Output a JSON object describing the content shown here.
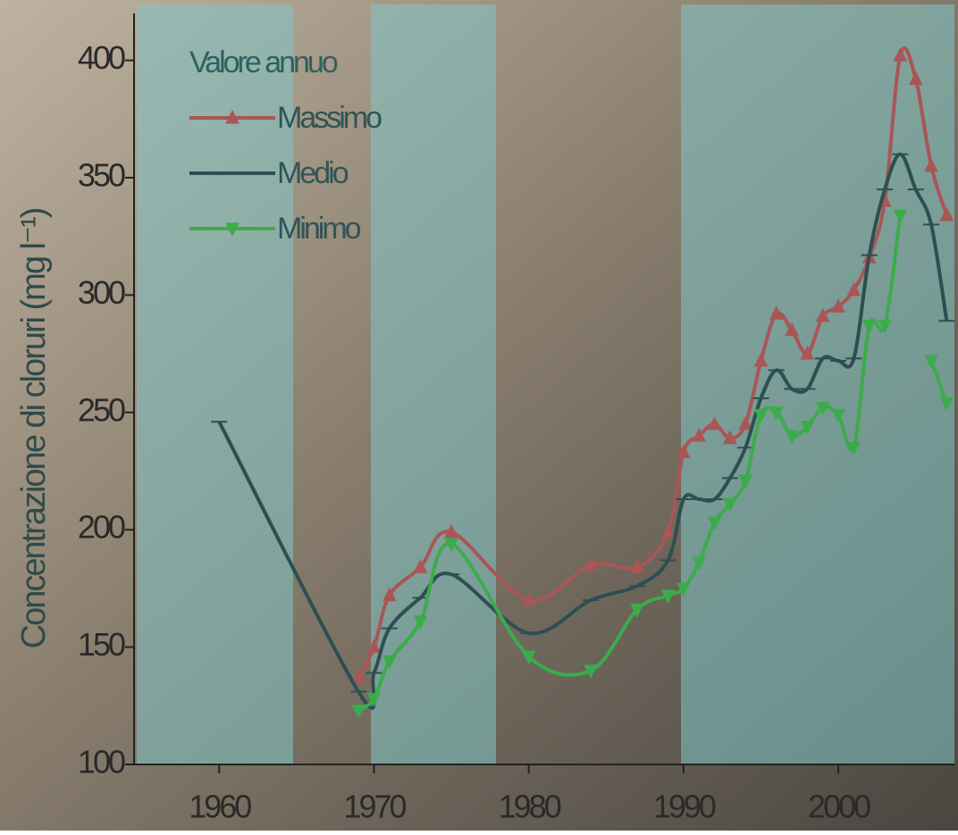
{
  "chart_data": {
    "type": "line",
    "y_label": "Concentrazione di cloruri (mg l⁻¹)",
    "legend_title": "Valore annuo",
    "x": [
      1960,
      1969,
      1970,
      1971,
      1973,
      1975,
      1980,
      1984,
      1987,
      1989,
      1990,
      1991,
      1992,
      1993,
      1994,
      1995,
      1996,
      1997,
      1998,
      1999,
      2000,
      2001,
      2002,
      2003,
      2004,
      2005,
      2006,
      2007
    ],
    "series": [
      {
        "name": "Massimo",
        "color": "#a85656",
        "marker": "triangle-up",
        "values": [
          null,
          137,
          150,
          172,
          184,
          199,
          170,
          185,
          184,
          199,
          233,
          240,
          245,
          239,
          245,
          272,
          292,
          285,
          275,
          291,
          295,
          302,
          316,
          340,
          402,
          392,
          355,
          334
        ]
      },
      {
        "name": "Medio",
        "color": "#2c4f52",
        "marker": "dash",
        "values": [
          246,
          131,
          139,
          158,
          171,
          181,
          156,
          170,
          176,
          187,
          213,
          213,
          213,
          222,
          235,
          256,
          268,
          260,
          260,
          273,
          272,
          273,
          317,
          345,
          360,
          345,
          330,
          289
        ]
      },
      {
        "name": "Minimo",
        "color": "#3cab4c",
        "marker": "triangle-down",
        "values": [
          null,
          123,
          128,
          144,
          161,
          194,
          146,
          140,
          166,
          172,
          175,
          186,
          203,
          211,
          221,
          249,
          250,
          240,
          244,
          252,
          249,
          235,
          287,
          287,
          334,
          null,
          272,
          254
        ]
      }
    ],
    "xlim": [
      1954.5,
      2007.5
    ],
    "ylim": [
      100,
      420
    ],
    "xticks": [
      1960,
      1970,
      1980,
      1990,
      2000
    ],
    "yticks": [
      100,
      150,
      200,
      250,
      300,
      350,
      400
    ]
  }
}
